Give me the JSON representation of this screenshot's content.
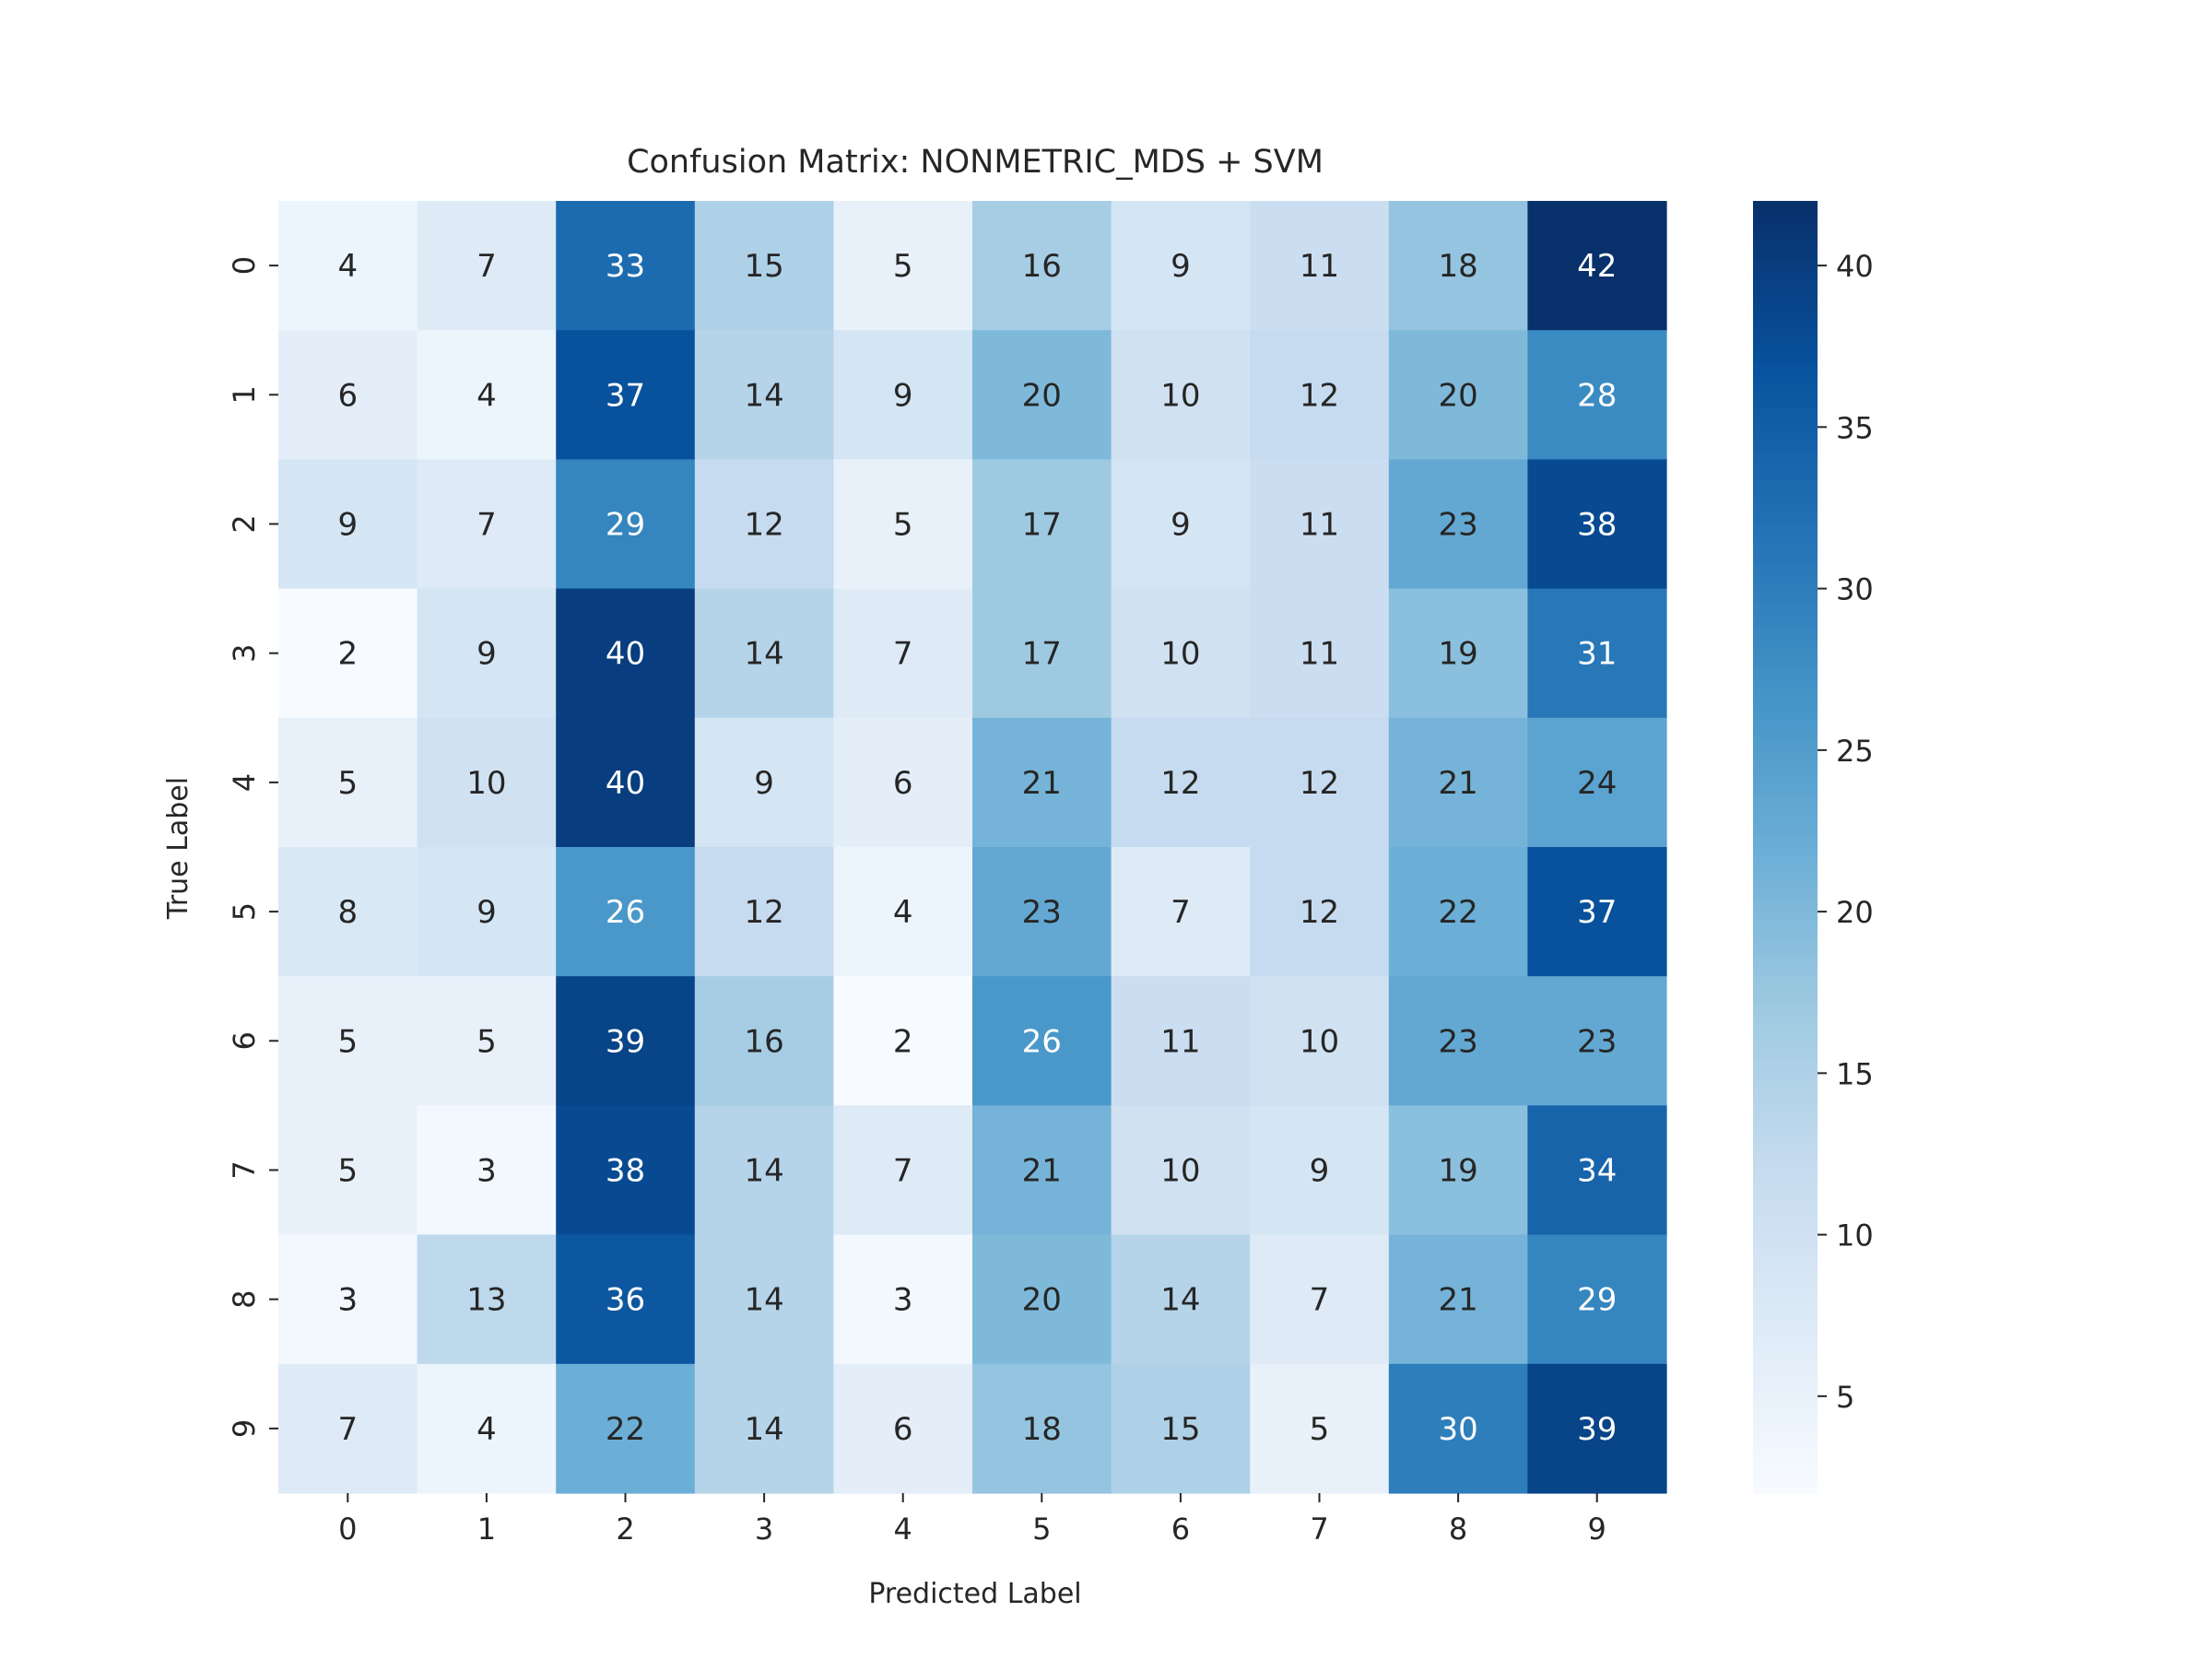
{
  "chart_data": {
    "type": "heatmap",
    "title": "Confusion Matrix: NONMETRIC_MDS + SVM",
    "xlabel": "Predicted Label",
    "ylabel": "True Label",
    "x_categories": [
      "0",
      "1",
      "2",
      "3",
      "4",
      "5",
      "6",
      "7",
      "8",
      "9"
    ],
    "y_categories": [
      "0",
      "1",
      "2",
      "3",
      "4",
      "5",
      "6",
      "7",
      "8",
      "9"
    ],
    "matrix": [
      [
        4,
        7,
        33,
        15,
        5,
        16,
        9,
        11,
        18,
        42
      ],
      [
        6,
        4,
        37,
        14,
        9,
        20,
        10,
        12,
        20,
        28
      ],
      [
        9,
        7,
        29,
        12,
        5,
        17,
        9,
        11,
        23,
        38
      ],
      [
        2,
        9,
        40,
        14,
        7,
        17,
        10,
        11,
        19,
        31
      ],
      [
        5,
        10,
        40,
        9,
        6,
        21,
        12,
        12,
        21,
        24
      ],
      [
        8,
        9,
        26,
        12,
        4,
        23,
        7,
        12,
        22,
        37
      ],
      [
        5,
        5,
        39,
        16,
        2,
        26,
        11,
        10,
        23,
        23
      ],
      [
        5,
        3,
        38,
        14,
        7,
        21,
        10,
        9,
        19,
        34
      ],
      [
        3,
        13,
        36,
        14,
        3,
        20,
        14,
        7,
        21,
        29
      ],
      [
        7,
        4,
        22,
        14,
        6,
        18,
        15,
        5,
        30,
        39
      ]
    ],
    "colormap": "Blues",
    "vmin": 2,
    "vmax": 42,
    "colorbar_ticks": [
      5,
      10,
      15,
      20,
      25,
      30,
      35,
      40
    ],
    "annotations": true
  }
}
